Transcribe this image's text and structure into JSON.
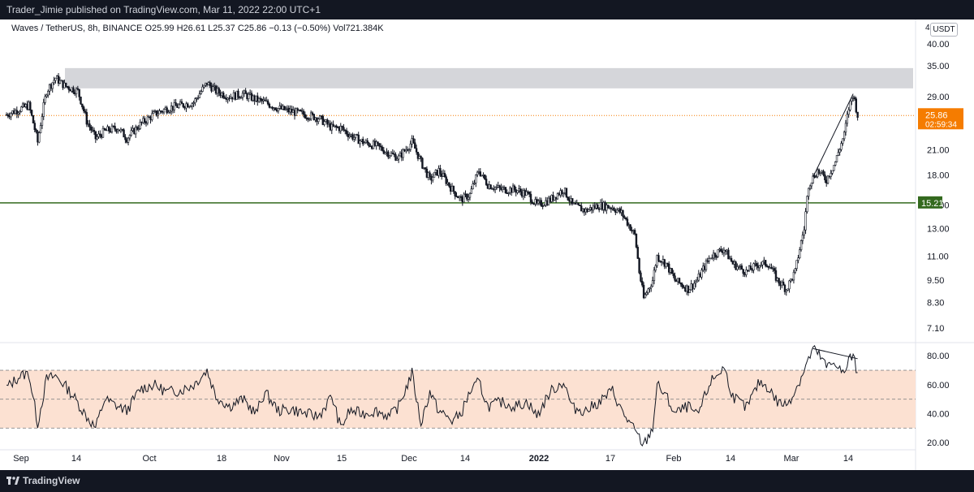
{
  "header": {
    "published_text": "Trader_Jimie published on TradingView.com, Mar 11, 2022 22:00 UTC+1"
  },
  "legend": {
    "text": "Waves / TetherUS, 8h, BINANCE  O25.99  H26.61  L25.37  C25.86  −0.13 (−0.50%)  Vol721.384K"
  },
  "price_axis": {
    "unit_prefix": "4",
    "unit": "USDT",
    "ticks": [
      "40.00",
      "35.00",
      "29.00",
      "25.00",
      "21.00",
      "18.00",
      "15.00",
      "13.00",
      "11.00",
      "9.50",
      "8.30",
      "7.10"
    ]
  },
  "rsi_axis": {
    "ticks": [
      "80.00",
      "60.00",
      "40.00",
      "20.00"
    ]
  },
  "time_axis": {
    "ticks": [
      "Sep",
      "14",
      "Oct",
      "18",
      "Nov",
      "15",
      "Dec",
      "14",
      "2022",
      "17",
      "Feb",
      "14",
      "Mar",
      "14"
    ]
  },
  "colors": {
    "background": "#ffffff",
    "frame": "#131722",
    "candle": "#131722",
    "resistance_zone": "#d5d6da",
    "support_line": "#33691e",
    "last_price": "#f57c00",
    "rsi_band": "#fce1d2",
    "rsi_line": "#131722"
  },
  "footer": {
    "brand": "TradingView"
  },
  "chart_data": [
    {
      "type": "candlestick",
      "title": "Waves / TetherUS, 8h, BINANCE",
      "y_scale": "log",
      "ylim": [
        6.6,
        42
      ],
      "x_range": [
        "2021-09-01",
        "2022-03-24"
      ],
      "series": [
        {
          "points": [
            [
              "2021-09-01",
              26.0
            ],
            [
              "2021-09-06",
              27.5
            ],
            [
              "2021-09-08",
              22.0
            ],
            [
              "2021-09-10",
              30.0
            ],
            [
              "2021-09-12",
              32.5
            ],
            [
              "2021-09-14",
              31.0
            ],
            [
              "2021-09-17",
              30.0
            ],
            [
              "2021-09-19",
              25.0
            ],
            [
              "2021-09-21",
              22.5
            ],
            [
              "2021-09-23",
              23.5
            ],
            [
              "2021-09-26",
              24.0
            ],
            [
              "2021-09-28",
              22.5
            ],
            [
              "2021-10-01",
              24.5
            ],
            [
              "2021-10-04",
              26.0
            ],
            [
              "2021-10-07",
              27.0
            ],
            [
              "2021-10-10",
              27.5
            ],
            [
              "2021-10-13",
              28.0
            ],
            [
              "2021-10-16",
              31.5
            ],
            [
              "2021-10-18",
              30.0
            ],
            [
              "2021-10-21",
              29.0
            ],
            [
              "2021-10-24",
              29.5
            ],
            [
              "2021-10-27",
              28.5
            ],
            [
              "2021-10-29",
              28.0
            ],
            [
              "2021-11-01",
              27.0
            ],
            [
              "2021-11-04",
              26.5
            ],
            [
              "2021-11-07",
              26.0
            ],
            [
              "2021-11-10",
              25.5
            ],
            [
              "2021-11-13",
              24.0
            ],
            [
              "2021-11-15",
              24.0
            ],
            [
              "2021-11-17",
              23.0
            ],
            [
              "2021-11-20",
              22.0
            ],
            [
              "2021-11-23",
              21.5
            ],
            [
              "2021-11-26",
              20.5
            ],
            [
              "2021-11-28",
              20.0
            ],
            [
              "2021-12-01",
              22.0
            ],
            [
              "2021-12-03",
              19.5
            ],
            [
              "2021-12-05",
              17.5
            ],
            [
              "2021-12-07",
              18.5
            ],
            [
              "2021-12-10",
              16.5
            ],
            [
              "2021-12-12",
              15.5
            ],
            [
              "2021-12-14",
              16.0
            ],
            [
              "2021-12-16",
              18.5
            ],
            [
              "2021-12-18",
              17.0
            ],
            [
              "2021-12-21",
              16.5
            ],
            [
              "2021-12-24",
              16.5
            ],
            [
              "2021-12-27",
              16.0
            ],
            [
              "2021-12-29",
              15.0
            ],
            [
              "2022-01-01",
              15.5
            ],
            [
              "2022-01-04",
              16.5
            ],
            [
              "2022-01-06",
              15.0
            ],
            [
              "2022-01-09",
              14.5
            ],
            [
              "2022-01-12",
              15.0
            ],
            [
              "2022-01-15",
              14.8
            ],
            [
              "2022-01-17",
              14.3
            ],
            [
              "2022-01-20",
              12.5
            ],
            [
              "2022-01-21",
              10.0
            ],
            [
              "2022-01-22",
              8.5
            ],
            [
              "2022-01-24",
              9.5
            ],
            [
              "2022-01-25",
              11.0
            ],
            [
              "2022-01-27",
              10.5
            ],
            [
              "2022-01-29",
              9.5
            ],
            [
              "2022-02-01",
              9.0
            ],
            [
              "2022-02-03",
              9.5
            ],
            [
              "2022-02-06",
              11.0
            ],
            [
              "2022-02-09",
              11.5
            ],
            [
              "2022-02-11",
              10.5
            ],
            [
              "2022-02-14",
              10.0
            ],
            [
              "2022-02-17",
              10.5
            ],
            [
              "2022-02-19",
              10.5
            ],
            [
              "2022-02-21",
              9.5
            ],
            [
              "2022-02-23",
              9.0
            ],
            [
              "2022-02-25",
              10.0
            ],
            [
              "2022-02-27",
              13.0
            ],
            [
              "2022-02-28",
              17.0
            ],
            [
              "2022-03-02",
              18.5
            ],
            [
              "2022-03-04",
              17.5
            ],
            [
              "2022-03-06",
              19.5
            ],
            [
              "2022-03-08",
              23.0
            ],
            [
              "2022-03-09",
              27.0
            ],
            [
              "2022-03-10",
              29.5
            ],
            [
              "2022-03-11",
              25.86
            ]
          ]
        }
      ],
      "resistance_zone": [
        30.5,
        34.5
      ],
      "support_level": 15.21,
      "last_price": 25.86,
      "last_price_label": "25.86",
      "countdown_label": "02:59:34",
      "support_label": "15.21",
      "trendline": [
        [
          "2022-03-01",
          17.8
        ],
        [
          "2022-03-10",
          29.5
        ]
      ]
    },
    {
      "type": "line",
      "title": "RSI",
      "ylim": [
        15,
        88
      ],
      "bands": [
        30,
        50,
        70
      ],
      "x_range": [
        "2021-09-01",
        "2022-03-24"
      ],
      "series": [
        {
          "points": [
            [
              "2021-09-01",
              58
            ],
            [
              "2021-09-04",
              66
            ],
            [
              "2021-09-06",
              68
            ],
            [
              "2021-09-08",
              33
            ],
            [
              "2021-09-10",
              64
            ],
            [
              "2021-09-12",
              66
            ],
            [
              "2021-09-14",
              60
            ],
            [
              "2021-09-16",
              52
            ],
            [
              "2021-09-19",
              38
            ],
            [
              "2021-09-21",
              30
            ],
            [
              "2021-09-23",
              50
            ],
            [
              "2021-09-26",
              45
            ],
            [
              "2021-09-28",
              42
            ],
            [
              "2021-10-01",
              57
            ],
            [
              "2021-10-04",
              60
            ],
            [
              "2021-10-07",
              55
            ],
            [
              "2021-10-10",
              56
            ],
            [
              "2021-10-13",
              60
            ],
            [
              "2021-10-16",
              70
            ],
            [
              "2021-10-18",
              52
            ],
            [
              "2021-10-21",
              45
            ],
            [
              "2021-10-24",
              50
            ],
            [
              "2021-10-27",
              40
            ],
            [
              "2021-10-29",
              55
            ],
            [
              "2021-11-01",
              42
            ],
            [
              "2021-11-04",
              43
            ],
            [
              "2021-11-07",
              40
            ],
            [
              "2021-11-10",
              38
            ],
            [
              "2021-11-13",
              52
            ],
            [
              "2021-11-15",
              30
            ],
            [
              "2021-11-17",
              42
            ],
            [
              "2021-11-20",
              40
            ],
            [
              "2021-11-23",
              42
            ],
            [
              "2021-11-26",
              38
            ],
            [
              "2021-11-28",
              45
            ],
            [
              "2021-12-01",
              68
            ],
            [
              "2021-12-03",
              33
            ],
            [
              "2021-12-05",
              55
            ],
            [
              "2021-12-07",
              42
            ],
            [
              "2021-12-10",
              35
            ],
            [
              "2021-12-12",
              40
            ],
            [
              "2021-12-14",
              55
            ],
            [
              "2021-12-16",
              62
            ],
            [
              "2021-12-18",
              45
            ],
            [
              "2021-12-21",
              48
            ],
            [
              "2021-12-24",
              45
            ],
            [
              "2021-12-27",
              48
            ],
            [
              "2021-12-29",
              38
            ],
            [
              "2022-01-01",
              55
            ],
            [
              "2022-01-04",
              62
            ],
            [
              "2022-01-06",
              44
            ],
            [
              "2022-01-09",
              42
            ],
            [
              "2022-01-12",
              48
            ],
            [
              "2022-01-15",
              56
            ],
            [
              "2022-01-17",
              42
            ],
            [
              "2022-01-20",
              28
            ],
            [
              "2022-01-22",
              18
            ],
            [
              "2022-01-24",
              30
            ],
            [
              "2022-01-25",
              60
            ],
            [
              "2022-01-27",
              52
            ],
            [
              "2022-01-29",
              40
            ],
            [
              "2022-02-01",
              45
            ],
            [
              "2022-02-03",
              38
            ],
            [
              "2022-02-06",
              62
            ],
            [
              "2022-02-09",
              72
            ],
            [
              "2022-02-11",
              52
            ],
            [
              "2022-02-14",
              44
            ],
            [
              "2022-02-17",
              62
            ],
            [
              "2022-02-19",
              58
            ],
            [
              "2022-02-21",
              48
            ],
            [
              "2022-02-23",
              46
            ],
            [
              "2022-02-25",
              56
            ],
            [
              "2022-02-27",
              70
            ],
            [
              "2022-03-01",
              85
            ],
            [
              "2022-03-03",
              78
            ],
            [
              "2022-03-04",
              72
            ],
            [
              "2022-03-06",
              76
            ],
            [
              "2022-03-08",
              66
            ],
            [
              "2022-03-09",
              78
            ],
            [
              "2022-03-10",
              79
            ],
            [
              "2022-03-11",
              68
            ]
          ]
        }
      ],
      "divergence_line": [
        [
          "2022-03-01",
          85
        ],
        [
          "2022-03-11",
          78
        ]
      ]
    }
  ]
}
